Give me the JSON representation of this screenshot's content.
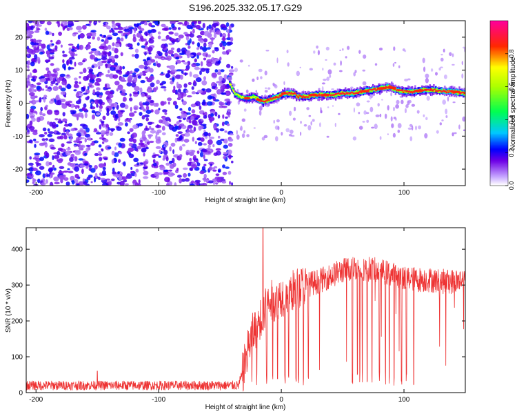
{
  "title": "S196.2025.332.05.17.G29",
  "chart_data": [
    {
      "type": "heatmap",
      "xlabel": "Height of straight line (km)",
      "ylabel": "Frequency (Hz)",
      "xlim": [
        -208,
        150
      ],
      "ylim": [
        -25,
        25
      ],
      "xticks": [
        -200,
        -100,
        0,
        100
      ],
      "yticks": [
        -20,
        -10,
        0,
        10,
        20
      ],
      "noise_region_x": [
        -208,
        -40
      ],
      "ridge": {
        "x": [
          -42,
          -38,
          -34,
          -30,
          -26,
          -22,
          -18,
          -14,
          -10,
          -6,
          -2,
          2,
          6,
          10,
          14,
          18,
          22,
          26,
          30,
          36,
          42,
          50,
          58,
          66,
          74,
          82,
          88,
          94,
          100,
          108,
          116,
          124,
          132,
          140,
          150
        ],
        "freq": [
          6,
          3,
          2,
          1.5,
          1.5,
          2,
          1,
          0.5,
          1,
          1.5,
          2,
          3,
          3,
          3,
          2,
          2,
          2,
          2.5,
          2.5,
          2.5,
          2.5,
          3,
          3,
          3.5,
          4,
          4.5,
          5,
          4,
          3.5,
          3.5,
          4,
          4,
          3.5,
          3.5,
          3
        ]
      },
      "colorbar": {
        "label": "Normalized spectral amplitude",
        "min": 0.0,
        "max": 1.0,
        "ticks": [
          "0.0",
          "0.2",
          "0.4",
          "0.6",
          "0.8"
        ],
        "tick_values": [
          0.0,
          0.2,
          0.4,
          0.6,
          0.8
        ]
      }
    },
    {
      "type": "line",
      "xlabel": "Height of straight line (km)",
      "ylabel": "SNR (10 * v/v)",
      "xlim": [
        -208,
        150
      ],
      "ylim": [
        0,
        460
      ],
      "xticks": [
        -200,
        -100,
        0,
        100
      ],
      "yticks": [
        0,
        100,
        200,
        300,
        400
      ],
      "color": "#ee3333",
      "profile": {
        "x": [
          -208,
          -160,
          -100,
          -60,
          -35,
          -31,
          -28,
          -25,
          -20,
          -15,
          -10,
          0,
          10,
          20,
          30,
          40,
          50,
          60,
          70,
          80,
          90,
          100,
          110,
          120,
          130,
          140,
          150
        ],
        "snr": [
          20,
          20,
          20,
          20,
          20,
          60,
          110,
          150,
          190,
          220,
          250,
          270,
          285,
          300,
          310,
          325,
          340,
          350,
          345,
          340,
          330,
          320,
          315,
          315,
          310,
          310,
          315
        ]
      },
      "spikes": [
        {
          "x": -15,
          "snr": 460
        },
        {
          "x": -150,
          "snr": 60
        }
      ],
      "dropouts": [
        -24,
        -20,
        -12,
        -7,
        -3,
        3,
        6,
        12,
        14,
        18,
        22,
        58,
        62,
        64,
        66,
        70,
        74,
        80,
        85,
        88,
        92,
        98,
        102,
        108
      ]
    }
  ]
}
